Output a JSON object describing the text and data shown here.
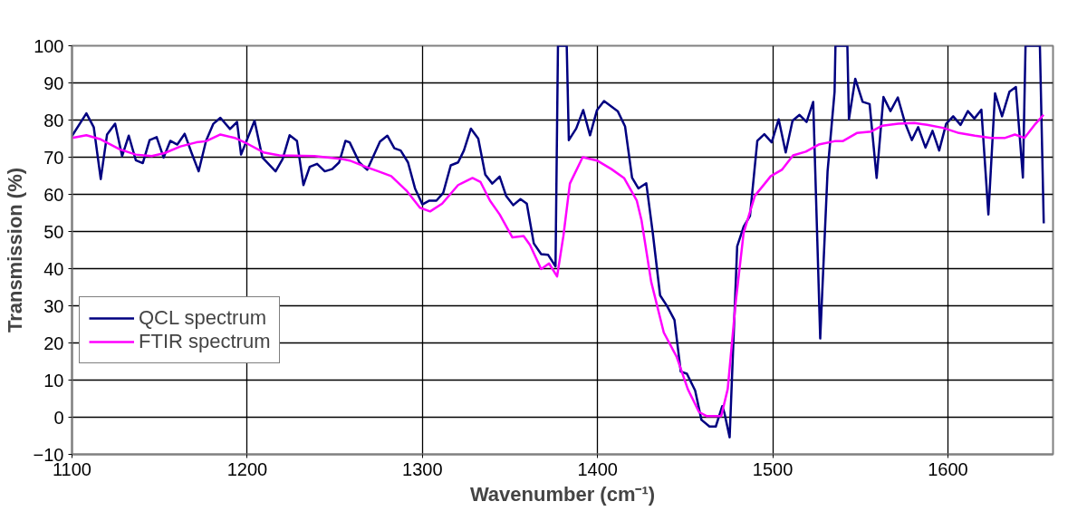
{
  "chart_data": {
    "type": "line",
    "xlabel": "Wavenumber (cm⁻¹)",
    "ylabel": "Transmission (%)",
    "xlim": [
      1100,
      1660
    ],
    "xticks": [
      1100,
      1200,
      1300,
      1400,
      1500,
      1600
    ],
    "ylim": [
      -10,
      100
    ],
    "yticks": [
      -10,
      0,
      10,
      20,
      30,
      40,
      50,
      60,
      70,
      80,
      90,
      100
    ],
    "grid": true,
    "legend": "left",
    "marker": "none",
    "line_style": "solid",
    "series": [
      {
        "name": "QCL spectrum",
        "color": "#000080",
        "x": [
          1100,
          1108.2,
          1112.4,
          1116.4,
          1120.0,
          1124.6,
          1128.6,
          1132.4,
          1136.4,
          1140.4,
          1144.3,
          1148.3,
          1152.3,
          1156.1,
          1160.1,
          1164.3,
          1168.3,
          1172.3,
          1176.5,
          1180.7,
          1184.7,
          1190.2,
          1194.2,
          1196.5,
          1204.2,
          1208.7,
          1216.2,
          1220.2,
          1224.2,
          1228.4,
          1232.1,
          1235.7,
          1239.9,
          1244.3,
          1248.5,
          1252.5,
          1256.1,
          1258.5,
          1264.0,
          1268.5,
          1275.8,
          1280.0,
          1284.0,
          1287.6,
          1291.8,
          1295.8,
          1300.0,
          1304.0,
          1308.0,
          1311.9,
          1316.2,
          1320.4,
          1323.7,
          1327.7,
          1331.9,
          1335.9,
          1339.9,
          1344.1,
          1347.8,
          1351.9,
          1356.0,
          1359.6,
          1363.6,
          1367.8,
          1371.8,
          1376.0,
          1377.4,
          1382.4,
          1383.6,
          1387.8,
          1391.8,
          1395.7,
          1399.7,
          1403.7,
          1411.5,
          1415.7,
          1419.7,
          1423.3,
          1427.8,
          1431.5,
          1435.7,
          1439.7,
          1443.9,
          1447.5,
          1451.0,
          1455.7,
          1459.3,
          1463.9,
          1467.5,
          1471.2,
          1472.5,
          1475.4,
          1479.7,
          1483.4,
          1487.0,
          1491.2,
          1495.2,
          1499.4,
          1503.4,
          1507.4,
          1511.3,
          1515.3,
          1519.3,
          1523.1,
          1527.1,
          1531.3,
          1535.3,
          1535.8,
          1542.6,
          1543.5,
          1547.1,
          1551.3,
          1555.3,
          1559.3,
          1563.2,
          1567.2,
          1571.4,
          1575.4,
          1579.4,
          1583.0,
          1587.2,
          1591.2,
          1595.0,
          1599.0,
          1603.0,
          1607.2,
          1611.4,
          1615.1,
          1619.1,
          1623.1,
          1626.9,
          1630.9,
          1635.1,
          1638.8,
          1642.8,
          1644.3,
          1652.5,
          1654.7
        ],
        "values": [
          75.7,
          81.8,
          78.1,
          64.1,
          76.1,
          79.0,
          70.3,
          75.8,
          69.2,
          68.4,
          74.6,
          75.4,
          69.9,
          74.4,
          73.4,
          76.3,
          71.1,
          66.2,
          74.4,
          79.0,
          80.6,
          77.6,
          79.5,
          70.7,
          79.8,
          69.9,
          66.2,
          69.5,
          75.9,
          74.4,
          62.5,
          67.4,
          68.2,
          66.2,
          66.8,
          68.6,
          74.4,
          74.0,
          68.6,
          66.6,
          74.2,
          75.8,
          72.4,
          71.8,
          68.6,
          61.6,
          57.3,
          58.3,
          58.3,
          60.4,
          67.8,
          68.6,
          71.8,
          77.7,
          75.0,
          65.3,
          62.9,
          64.8,
          59.6,
          57.1,
          58.7,
          57.5,
          46.8,
          43.9,
          43.7,
          40.6,
          100,
          100,
          74.6,
          77.7,
          82.7,
          75.9,
          82.7,
          85.1,
          82.4,
          78.3,
          64.5,
          61.6,
          63.0,
          49.7,
          32.8,
          29.9,
          26.2,
          12.3,
          11.7,
          7.2,
          -0.7,
          -2.5,
          -2.5,
          3.0,
          1.0,
          -5.4,
          46.0,
          51.3,
          54.2,
          74.4,
          76.2,
          74.0,
          80.2,
          71.3,
          79.8,
          81.4,
          79.5,
          84.9,
          21.2,
          66.2,
          87.6,
          100,
          100,
          80.2,
          91.1,
          84.9,
          84.3,
          64.4,
          86.2,
          82.4,
          86.1,
          79.4,
          74.6,
          78.1,
          72.6,
          77.1,
          71.8,
          79.0,
          81.0,
          78.7,
          82.4,
          80.4,
          82.8,
          54.6,
          87.2,
          81.0,
          87.6,
          88.9,
          64.5,
          100,
          100,
          52.2
        ]
      },
      {
        "name": "FTIR spectrum",
        "color": "#ff00ff",
        "x": [
          1100,
          1108.2,
          1116.4,
          1127.3,
          1136.4,
          1145.5,
          1152.8,
          1161.9,
          1171.0,
          1176.5,
          1184.7,
          1192.9,
          1200.2,
          1209.3,
          1218.4,
          1238.4,
          1253.0,
          1258.5,
          1267.6,
          1274.9,
          1282.2,
          1291.3,
          1298.6,
          1304.4,
          1311.3,
          1320.4,
          1328.6,
          1333.2,
          1338.6,
          1344.1,
          1351.4,
          1357.8,
          1361.4,
          1367.8,
          1372.3,
          1376.9,
          1380.5,
          1384.2,
          1391.5,
          1399.7,
          1407.9,
          1415.1,
          1422.4,
          1425.1,
          1430.6,
          1437.8,
          1445.1,
          1451.5,
          1457.9,
          1462.4,
          1470.6,
          1474.3,
          1478.8,
          1483.4,
          1489.8,
          1498.9,
          1505.2,
          1511.6,
          1518.9,
          1526.2,
          1535.3,
          1539.9,
          1548.0,
          1556.2,
          1562.6,
          1571.7,
          1580.8,
          1588.1,
          1597.2,
          1606.3,
          1615.4,
          1624.5,
          1632.7,
          1638.2,
          1643.7,
          1650.0,
          1654.6
        ],
        "values": [
          75.2,
          75.9,
          74.8,
          72.1,
          70.7,
          70.3,
          71.1,
          72.9,
          74.0,
          74.3,
          76.1,
          75.2,
          73.6,
          71.3,
          70.5,
          70.3,
          69.6,
          69.1,
          67.4,
          66.2,
          64.9,
          60.8,
          56.4,
          55.4,
          57.5,
          62.5,
          64.4,
          63.3,
          58.3,
          54.6,
          48.4,
          48.8,
          46.4,
          39.9,
          41.4,
          37.9,
          48.8,
          62.9,
          70.0,
          69.1,
          66.8,
          64.4,
          58.3,
          53.0,
          36.5,
          22.8,
          16.3,
          7.6,
          1.4,
          0.3,
          0.3,
          7.6,
          30.7,
          49.7,
          59.6,
          64.9,
          66.6,
          70.5,
          71.5,
          73.4,
          74.3,
          74.3,
          76.5,
          76.9,
          78.5,
          79.0,
          79.2,
          78.7,
          77.9,
          76.5,
          75.8,
          75.2,
          75.2,
          76.1,
          75.2,
          79.0,
          81.4
        ]
      }
    ]
  }
}
